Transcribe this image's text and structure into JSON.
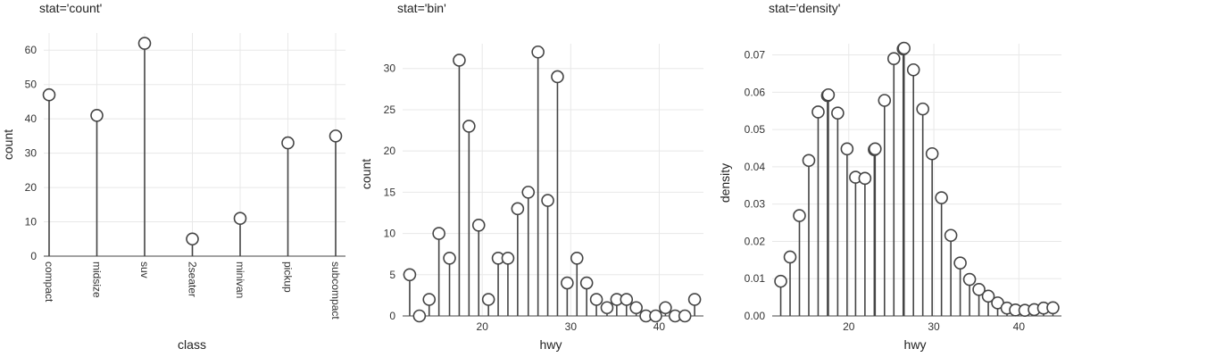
{
  "chart_data": [
    {
      "type": "lollipop",
      "title": "stat='count'",
      "xlabel": "class",
      "ylabel": "count",
      "categories": [
        "compact",
        "midsize",
        "suv",
        "2seater",
        "minivan",
        "pickup",
        "subcompact"
      ],
      "values": [
        47,
        41,
        62,
        5,
        11,
        33,
        35
      ],
      "ylim": [
        0,
        65
      ],
      "yticks": [
        0,
        10,
        20,
        30,
        40,
        50,
        60
      ],
      "grid": true
    },
    {
      "type": "lollipop",
      "title": "stat='bin'",
      "xlabel": "hwy",
      "ylabel": "count",
      "x": [
        11.8,
        12.9,
        14.0,
        15.1,
        16.3,
        17.4,
        18.5,
        19.6,
        20.7,
        21.8,
        22.9,
        24.0,
        25.2,
        26.3,
        27.4,
        28.5,
        29.6,
        30.7,
        31.8,
        32.9,
        34.1,
        35.2,
        36.3,
        37.4,
        38.5,
        39.6,
        40.7,
        41.8,
        42.9,
        44.0
      ],
      "values": [
        5,
        0,
        2,
        10,
        7,
        31,
        23,
        11,
        2,
        7,
        7,
        13,
        15,
        32,
        14,
        29,
        4,
        7,
        4,
        2,
        1,
        2,
        2,
        1,
        0,
        0,
        1,
        0,
        0,
        2
      ],
      "xlim": [
        11.0,
        45.0
      ],
      "ylim": [
        0,
        33
      ],
      "xticks": [
        20,
        30,
        40
      ],
      "yticks": [
        0,
        5,
        10,
        15,
        20,
        25,
        30
      ],
      "grid": true
    },
    {
      "type": "lollipop",
      "title": "stat='density'",
      "xlabel": "hwy",
      "ylabel": "density",
      "x": [
        12.0,
        13.1,
        14.2,
        15.3,
        16.4,
        17.5,
        17.6,
        18.7,
        19.8,
        20.8,
        21.9,
        23.0,
        23.1,
        24.2,
        25.3,
        26.4,
        26.5,
        27.6,
        28.7,
        29.8,
        30.9,
        32.0,
        33.1,
        34.2,
        35.3,
        36.4,
        37.5,
        38.6,
        39.6,
        40.7,
        41.8,
        42.9,
        44.0
      ],
      "values": [
        0.0093,
        0.0158,
        0.0269,
        0.0417,
        0.0547,
        0.0591,
        0.0593,
        0.0544,
        0.0448,
        0.0372,
        0.0369,
        0.0446,
        0.0448,
        0.0578,
        0.069,
        0.0716,
        0.0718,
        0.066,
        0.0555,
        0.0435,
        0.0317,
        0.0216,
        0.0142,
        0.0098,
        0.0071,
        0.0053,
        0.0035,
        0.0021,
        0.0016,
        0.0015,
        0.0017,
        0.0021,
        0.0022
      ],
      "xlim": [
        11.0,
        45.0
      ],
      "ylim": [
        0,
        0.073
      ],
      "xticks": [
        20,
        30,
        40
      ],
      "yticks": [
        0.0,
        0.01,
        0.02,
        0.03,
        0.04,
        0.05,
        0.06,
        0.07
      ],
      "ytick_labels": [
        "0.00",
        "0.01",
        "0.02",
        "0.03",
        "0.04",
        "0.05",
        "0.06",
        "0.07"
      ],
      "grid": true
    }
  ]
}
